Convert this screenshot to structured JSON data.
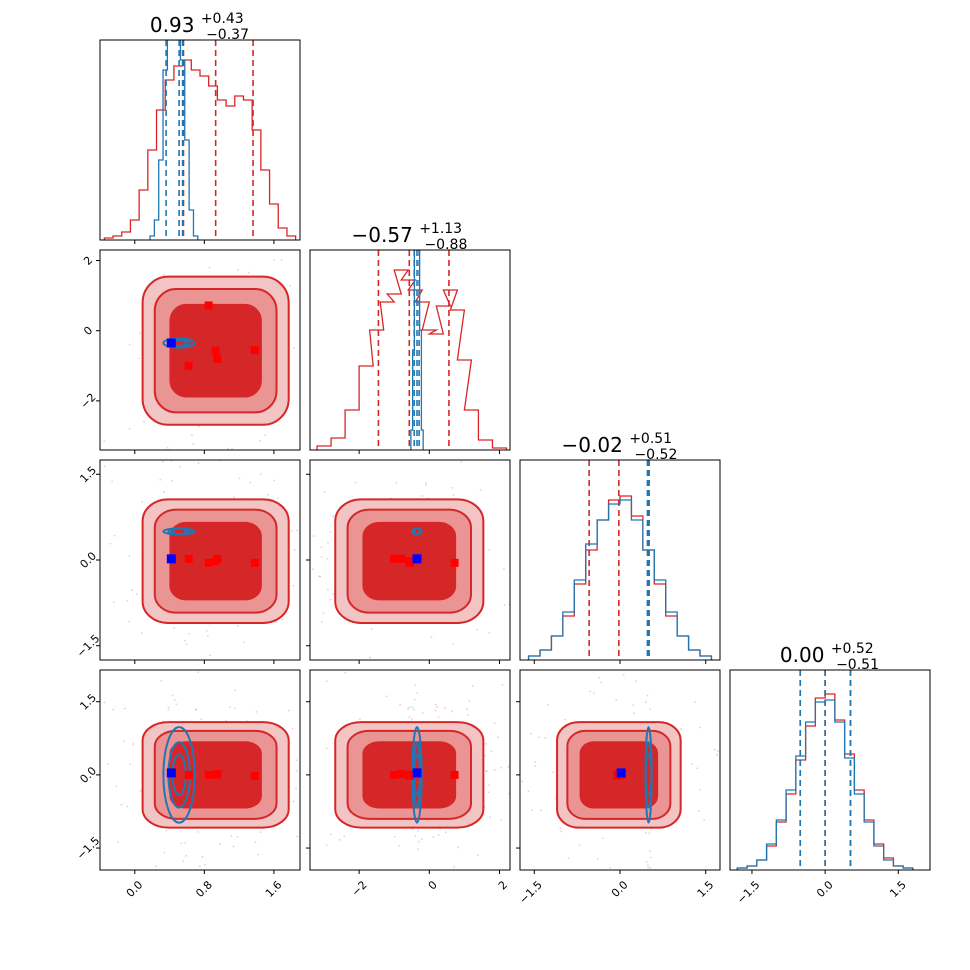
{
  "colors": {
    "red": "#d62728",
    "blue": "#1f77b4",
    "red_fill_light": "#f2c4c4",
    "red_fill_mid": "#ea9494",
    "marker_red": "#ff0000",
    "marker_blue": "#0000ff"
  },
  "titles": [
    {
      "value": "0.93",
      "plus": "+0.43",
      "minus": "−0.37"
    },
    {
      "value": "−0.57",
      "plus": "+1.13",
      "minus": "−0.88"
    },
    {
      "value": "−0.02",
      "plus": "+0.51",
      "minus": "−0.52"
    },
    {
      "value": "0.00",
      "plus": "+0.52",
      "minus": "−0.51"
    }
  ],
  "chart_data": {
    "type": "corner",
    "n_params": 4,
    "grid": false,
    "axis_ranges": [
      [
        -0.4,
        1.9
      ],
      [
        -3.4,
        2.3
      ],
      [
        -1.75,
        1.75
      ],
      [
        -1.95,
        2.15
      ]
    ],
    "ticks": [
      {
        "values": [
          0.0,
          0.8,
          1.6
        ],
        "labels": [
          "0.0",
          "0.8",
          "1.6"
        ]
      },
      {
        "values": [
          -2,
          0,
          2
        ],
        "labels": [
          "−2",
          "0",
          "2"
        ]
      },
      {
        "values": [
          -1.5,
          0.0,
          1.5
        ],
        "labels": [
          "−1.5",
          "0.0",
          "1.5"
        ]
      },
      {
        "values": [
          -1.5,
          0.0,
          1.5
        ],
        "labels": [
          "−1.5",
          "0.0",
          "1.5"
        ]
      }
    ],
    "series": [
      {
        "color": "#d62728",
        "quantiles": [
          [
            0.56,
            0.93,
            1.36
          ],
          [
            -1.45,
            -0.57,
            0.56
          ],
          [
            -0.54,
            -0.02,
            0.49
          ],
          [
            -0.51,
            0.0,
            0.52
          ]
        ],
        "histograms": [
          {
            "x": [
              -0.3,
              -0.2,
              -0.1,
              0.0,
              0.1,
              0.2,
              0.3,
              0.4,
              0.5,
              0.6,
              0.7,
              0.8,
              0.9,
              1.0,
              1.1,
              1.2,
              1.3,
              1.4,
              1.5,
              1.6,
              1.7,
              1.8
            ],
            "y": [
              0.01,
              0.02,
              0.04,
              0.1,
              0.25,
              0.45,
              0.65,
              0.8,
              0.87,
              0.9,
              0.85,
              0.82,
              0.77,
              0.7,
              0.67,
              0.72,
              0.7,
              0.55,
              0.35,
              0.18,
              0.06,
              0.02
            ]
          },
          {
            "x": [
              -3.0,
              -2.6,
              -2.2,
              -1.8,
              -1.5,
              -1.2,
              -1.0,
              -0.8,
              -0.6,
              -0.4,
              -0.2,
              0.0,
              0.2,
              0.4,
              0.6,
              0.8,
              1.0,
              1.2,
              1.6,
              2.0
            ],
            "y": [
              0.02,
              0.06,
              0.2,
              0.42,
              0.6,
              0.74,
              0.78,
              0.9,
              0.85,
              0.8,
              0.74,
              0.6,
              0.58,
              0.72,
              0.8,
              0.7,
              0.45,
              0.2,
              0.05,
              0.01
            ]
          },
          {
            "x": [
              -1.5,
              -1.3,
              -1.1,
              -0.9,
              -0.7,
              -0.5,
              -0.3,
              -0.1,
              0.1,
              0.3,
              0.5,
              0.7,
              0.9,
              1.1,
              1.3,
              1.5
            ],
            "y": [
              0.02,
              0.05,
              0.12,
              0.22,
              0.38,
              0.55,
              0.7,
              0.8,
              0.82,
              0.72,
              0.55,
              0.38,
              0.22,
              0.12,
              0.05,
              0.02
            ]
          },
          {
            "x": [
              -1.7,
              -1.5,
              -1.3,
              -1.1,
              -0.9,
              -0.7,
              -0.5,
              -0.3,
              -0.1,
              0.1,
              0.3,
              0.5,
              0.7,
              0.9,
              1.1,
              1.3,
              1.5,
              1.7
            ],
            "y": [
              0.01,
              0.02,
              0.05,
              0.12,
              0.24,
              0.38,
              0.55,
              0.72,
              0.86,
              0.88,
              0.75,
              0.58,
              0.4,
              0.25,
              0.13,
              0.06,
              0.02,
              0.01
            ]
          }
        ],
        "points": [
          [
            0.93,
            -0.57,
            -0.02,
            0.0
          ],
          [
            1.38,
            -0.55,
            -0.05,
            -0.02
          ],
          [
            0.85,
            0.72,
            -0.05,
            0.0
          ],
          [
            0.62,
            -1.0,
            0.02,
            0.0
          ],
          [
            0.95,
            -0.8,
            0.02,
            0.02
          ]
        ]
      },
      {
        "color": "#1f77b4",
        "quantiles": [
          [
            0.36,
            0.51,
            0.55
          ],
          [
            -0.43,
            -0.35,
            -0.29
          ],
          [
            0.48,
            0.5,
            0.51
          ],
          [
            -0.51,
            0.0,
            0.52
          ]
        ],
        "histograms": [
          {
            "x": [
              0.2,
              0.25,
              0.3,
              0.35,
              0.4,
              0.45,
              0.5,
              0.55,
              0.6,
              0.65,
              0.7
            ],
            "y": [
              0.02,
              0.1,
              0.4,
              0.85,
              1.0,
              1.0,
              1.0,
              0.9,
              0.5,
              0.15,
              0.02
            ]
          },
          {
            "x": [
              -0.5,
              -0.45,
              -0.4,
              -0.35,
              -0.3,
              -0.25,
              -0.2
            ],
            "y": [
              0.1,
              0.5,
              1.0,
              1.0,
              1.0,
              0.6,
              0.1
            ]
          },
          {
            "x": [
              -1.5,
              -1.3,
              -1.1,
              -0.9,
              -0.7,
              -0.5,
              -0.3,
              -0.1,
              0.1,
              0.3,
              0.5,
              0.7,
              0.9,
              1.1,
              1.3,
              1.5
            ],
            "y": [
              0.02,
              0.05,
              0.12,
              0.24,
              0.4,
              0.58,
              0.7,
              0.78,
              0.8,
              0.7,
              0.55,
              0.4,
              0.24,
              0.12,
              0.05,
              0.02
            ]
          },
          {
            "x": [
              -1.7,
              -1.5,
              -1.3,
              -1.1,
              -0.9,
              -0.7,
              -0.5,
              -0.3,
              -0.1,
              0.1,
              0.3,
              0.5,
              0.7,
              0.9,
              1.1,
              1.3,
              1.5,
              1.7
            ],
            "y": [
              0.01,
              0.02,
              0.05,
              0.13,
              0.25,
              0.4,
              0.57,
              0.74,
              0.84,
              0.85,
              0.74,
              0.56,
              0.38,
              0.24,
              0.12,
              0.05,
              0.02,
              0.01
            ]
          }
        ],
        "points": [
          [
            0.42,
            -0.35,
            0.02,
            0.04
          ]
        ]
      }
    ]
  }
}
